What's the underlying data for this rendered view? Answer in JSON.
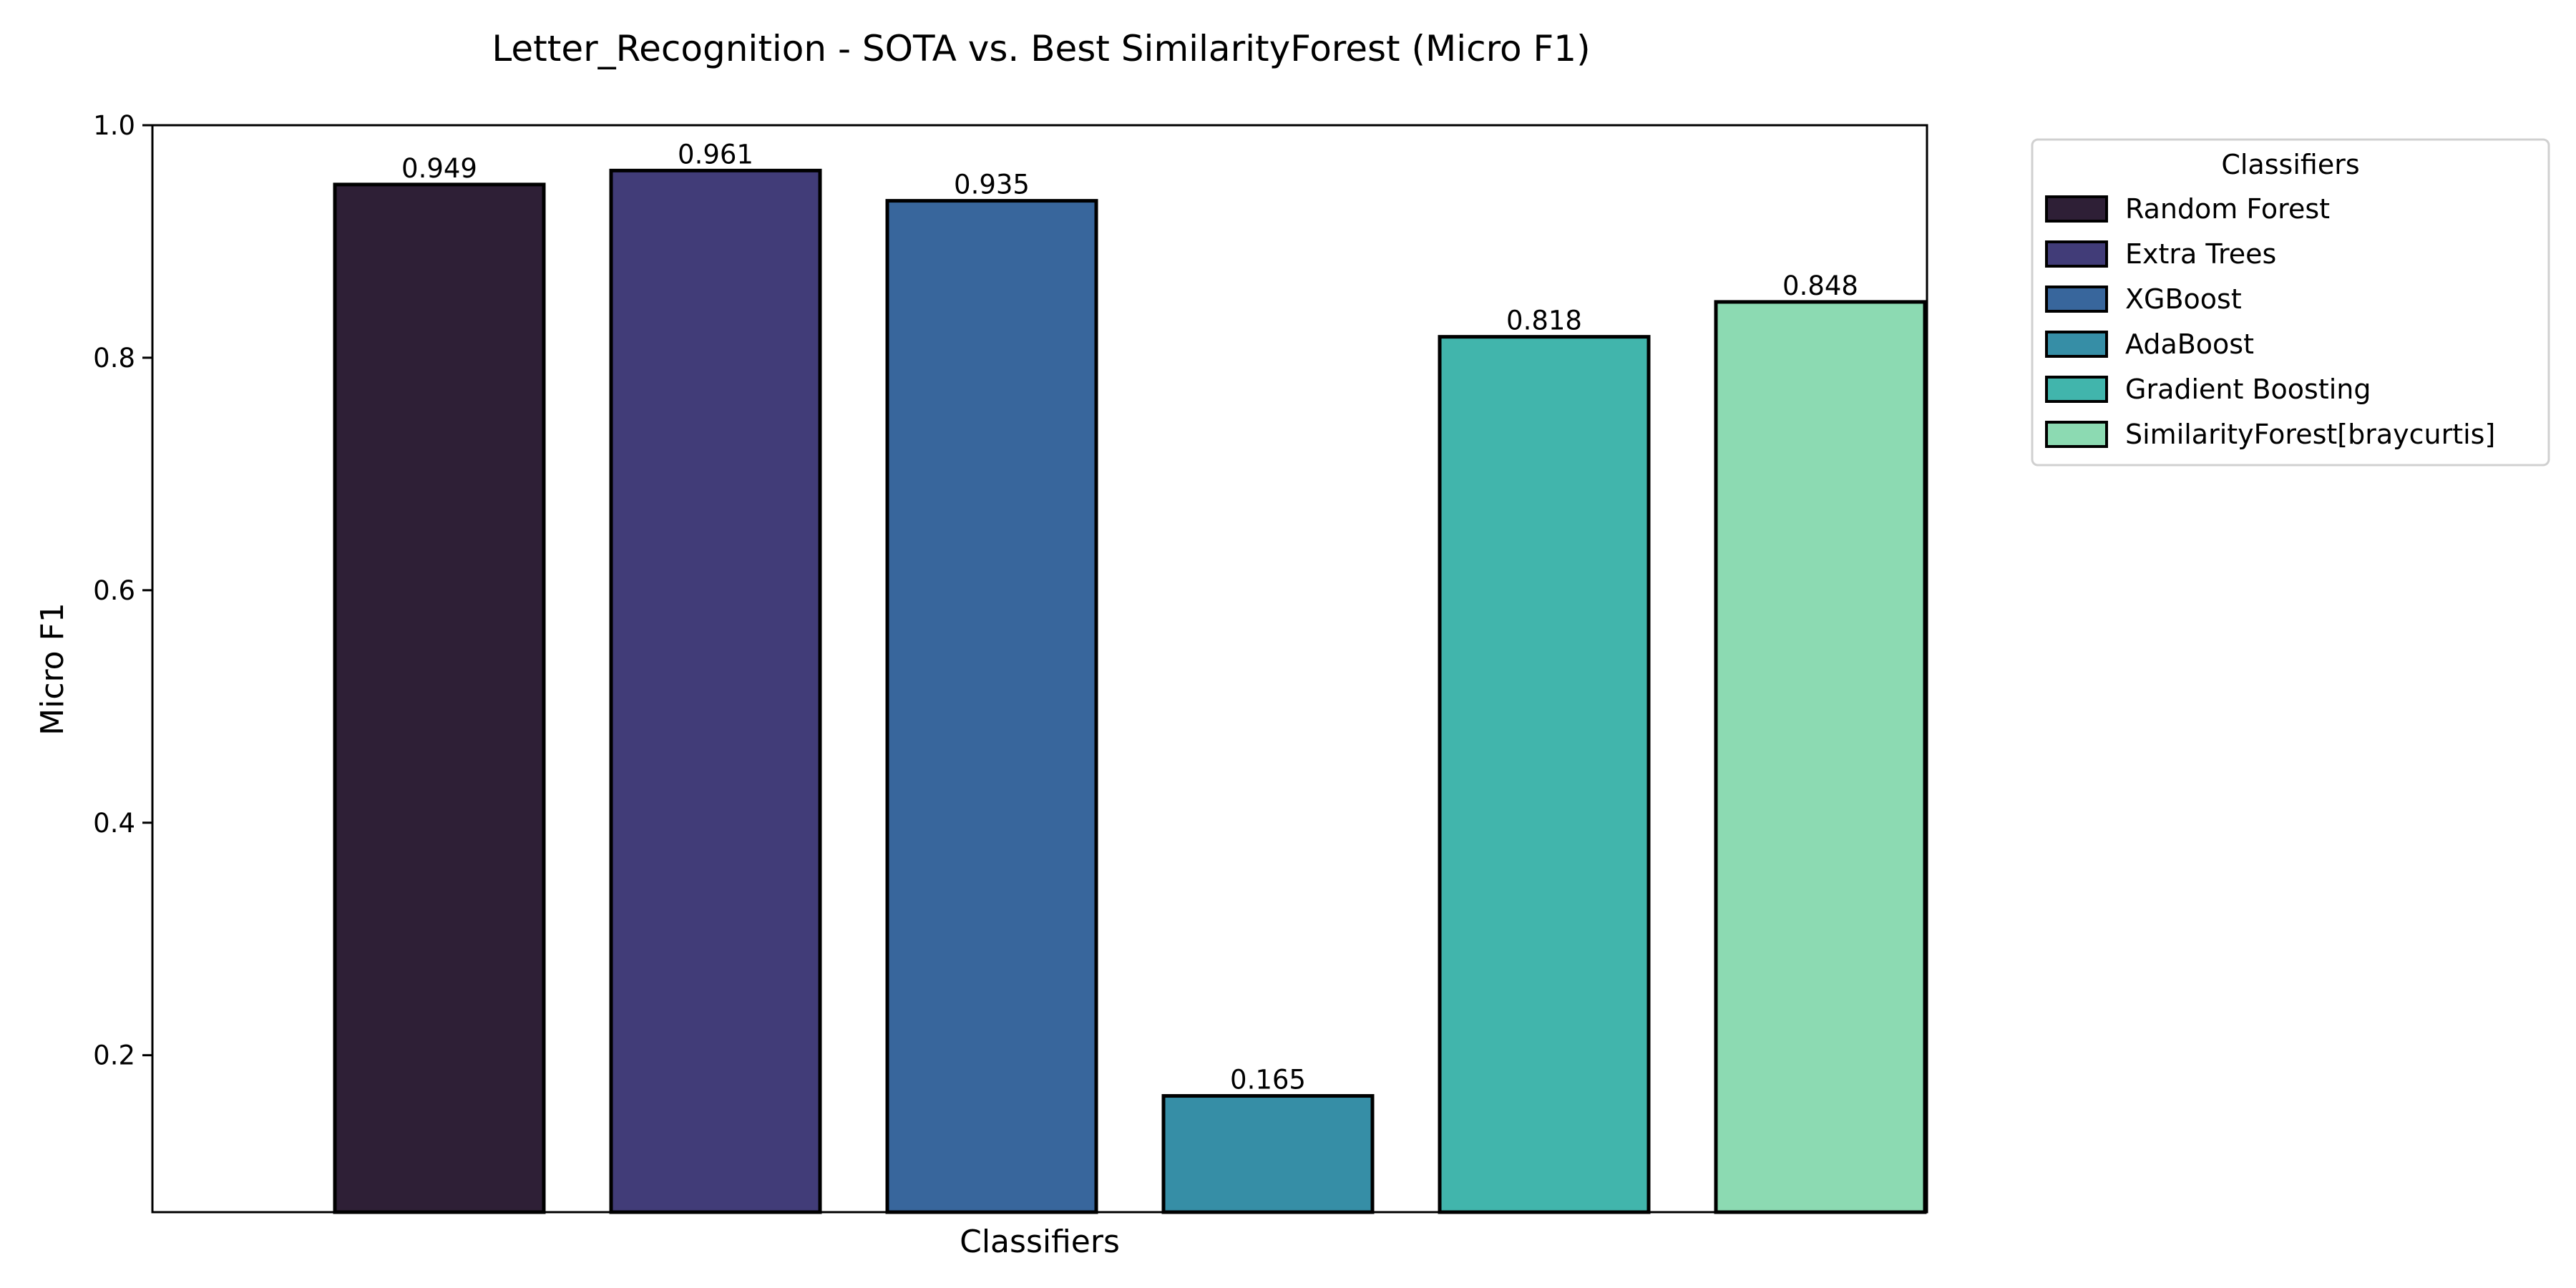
{
  "chart_data": {
    "type": "bar",
    "title": "Letter_Recognition - SOTA vs. Best SimilarityForest (Micro F1)",
    "xlabel": "Classifiers",
    "ylabel": "Micro F1",
    "ylim": [
      0.065,
      1.0
    ],
    "yticks": [
      0.2,
      0.4,
      0.6,
      0.8,
      1.0
    ],
    "ytick_labels": [
      "0.2",
      "0.4",
      "0.6",
      "0.8",
      "1.0"
    ],
    "grid": false,
    "categories": [
      "Random Forest",
      "Extra Trees",
      "XGBoost",
      "AdaBoost",
      "Gradient Boosting",
      "SimilarityForest[braycurtis]"
    ],
    "values": [
      0.949,
      0.961,
      0.935,
      0.165,
      0.818,
      0.848
    ],
    "value_labels": [
      "0.949",
      "0.961",
      "0.935",
      "0.165",
      "0.818",
      "0.848"
    ],
    "colors": [
      "#2e1f36",
      "#413c78",
      "#38669c",
      "#368ea6",
      "#41b5ac",
      "#8cdab2"
    ],
    "legend": {
      "title": "Classifiers",
      "placement": "outside-top-right",
      "entries": [
        "Random Forest",
        "Extra Trees",
        "XGBoost",
        "AdaBoost",
        "Gradient Boosting",
        "SimilarityForest[braycurtis]"
      ]
    }
  }
}
